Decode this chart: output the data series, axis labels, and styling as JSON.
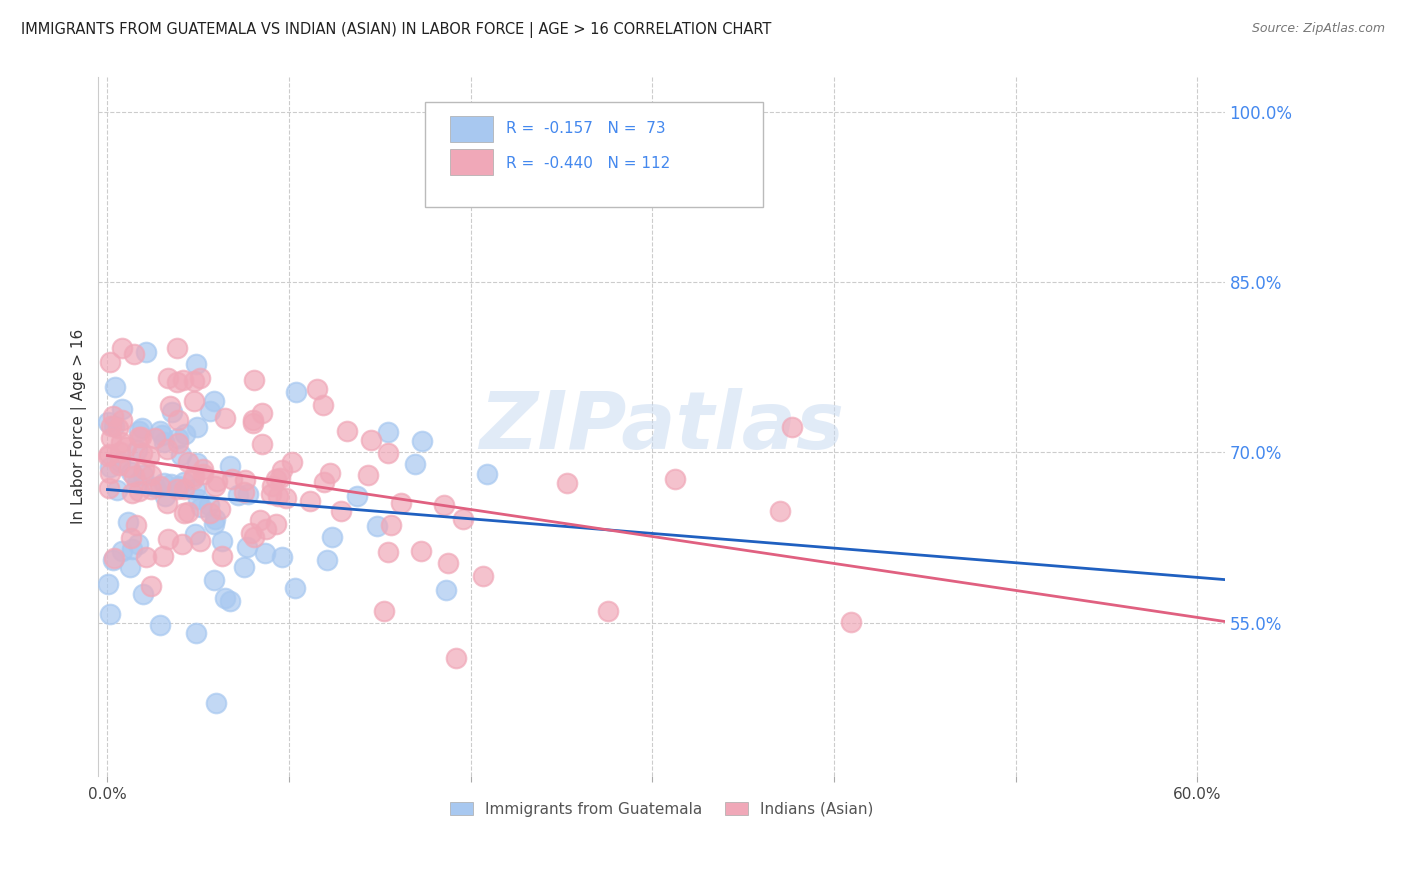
{
  "title": "IMMIGRANTS FROM GUATEMALA VS INDIAN (ASIAN) IN LABOR FORCE | AGE > 16 CORRELATION CHART",
  "source": "Source: ZipAtlas.com",
  "ylabel": "In Labor Force | Age > 16",
  "ytick_values": [
    1.0,
    0.85,
    0.7,
    0.55
  ],
  "ytick_labels": [
    "100.0%",
    "85.0%",
    "70.0%",
    "55.0%"
  ],
  "xlim": [
    -0.005,
    0.615
  ],
  "ylim": [
    0.415,
    1.03
  ],
  "watermark": "ZIPatlas",
  "color_blue": "#a8c8f0",
  "color_pink": "#f0a8b8",
  "line_color_blue": "#2060c0",
  "line_color_pink": "#e06080",
  "ytick_color": "#4488ee",
  "title_color": "#222222",
  "source_color": "#777777",
  "legend_text_color": "#4488ee",
  "legend_r_color": "#cc0066",
  "grid_color": "#cccccc",
  "bg_color": "#ffffff",
  "n_guat": 73,
  "n_indian": 112,
  "guat_intercept": 0.672,
  "guat_slope": -0.068,
  "indian_intercept": 0.685,
  "indian_slope": -0.115
}
